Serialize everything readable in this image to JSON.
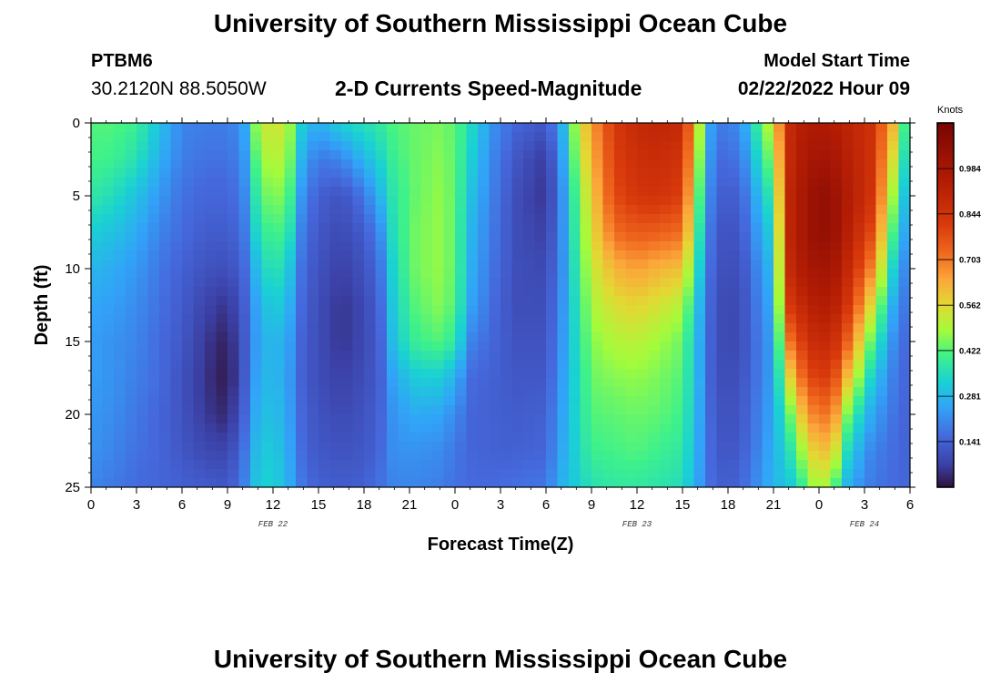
{
  "header": {
    "title": "University of Southern Mississippi Ocean Cube",
    "station_id": "PTBM6",
    "coordinates": "30.2120N  88.5050W",
    "subtitle": "2-D Currents Speed-Magnitude",
    "model_start_label": "Model Start Time",
    "model_start_value": "02/22/2022 Hour 09"
  },
  "footer": {
    "title": "University of Southern Mississippi Ocean Cube"
  },
  "colors": {
    "background": "#ffffff",
    "text": "#000000"
  },
  "chart_data": {
    "type": "heatmap",
    "title": "2-D Currents Speed-Magnitude",
    "xlabel": "Forecast Time(Z)",
    "ylabel": "Depth (ft)",
    "x_hours_range": [
      0,
      54
    ],
    "x_ticks": [
      {
        "h": 0,
        "label": "0"
      },
      {
        "h": 3,
        "label": "3"
      },
      {
        "h": 6,
        "label": "6"
      },
      {
        "h": 9,
        "label": "9"
      },
      {
        "h": 12,
        "label": "12"
      },
      {
        "h": 15,
        "label": "15"
      },
      {
        "h": 18,
        "label": "18"
      },
      {
        "h": 21,
        "label": "21"
      },
      {
        "h": 24,
        "label": "0"
      },
      {
        "h": 27,
        "label": "3"
      },
      {
        "h": 30,
        "label": "6"
      },
      {
        "h": 33,
        "label": "9"
      },
      {
        "h": 36,
        "label": "12"
      },
      {
        "h": 39,
        "label": "15"
      },
      {
        "h": 42,
        "label": "18"
      },
      {
        "h": 45,
        "label": "21"
      },
      {
        "h": 48,
        "label": "0"
      },
      {
        "h": 51,
        "label": "3"
      },
      {
        "h": 54,
        "label": "6"
      }
    ],
    "date_labels": [
      {
        "h": 12,
        "label": "FEB 22"
      },
      {
        "h": 36,
        "label": "FEB 23"
      },
      {
        "h": 51,
        "label": "FEB 24"
      }
    ],
    "ylim": [
      0,
      25
    ],
    "y_ticks": [
      0,
      5,
      10,
      15,
      20,
      25
    ],
    "y_tick_labels": [
      "0",
      "5",
      "10",
      "15",
      "20",
      "25"
    ],
    "colorbar": {
      "title": "Knots",
      "range": [
        0,
        1.125
      ],
      "tick_values": [
        0.141,
        0.281,
        0.422,
        0.562,
        0.703,
        0.844,
        0.984
      ],
      "tick_labels": [
        "0.141",
        "0.281",
        "0.422",
        "0.562",
        "0.703",
        "0.844",
        "0.984"
      ]
    },
    "columns": [
      {
        "h": 0,
        "s": [
          0.42,
          0.41,
          0.38,
          0.32,
          0.28,
          0.25,
          0.24,
          0.24,
          0.23,
          0.22,
          0.2
        ]
      },
      {
        "h": 1.5,
        "s": [
          0.42,
          0.4,
          0.35,
          0.3,
          0.26,
          0.24,
          0.22,
          0.22,
          0.21,
          0.2,
          0.18
        ]
      },
      {
        "h": 3,
        "s": [
          0.4,
          0.36,
          0.3,
          0.26,
          0.23,
          0.21,
          0.2,
          0.19,
          0.18,
          0.17,
          0.16
        ]
      },
      {
        "h": 4.5,
        "s": [
          0.3,
          0.27,
          0.23,
          0.2,
          0.18,
          0.17,
          0.16,
          0.16,
          0.15,
          0.15,
          0.15
        ]
      },
      {
        "h": 6,
        "s": [
          0.2,
          0.19,
          0.17,
          0.16,
          0.14,
          0.13,
          0.12,
          0.11,
          0.11,
          0.12,
          0.14
        ]
      },
      {
        "h": 7.5,
        "s": [
          0.19,
          0.17,
          0.15,
          0.13,
          0.11,
          0.08,
          0.06,
          0.05,
          0.06,
          0.09,
          0.13
        ]
      },
      {
        "h": 9,
        "s": [
          0.19,
          0.17,
          0.15,
          0.13,
          0.1,
          0.05,
          0.02,
          0.01,
          0.03,
          0.08,
          0.12
        ]
      },
      {
        "h": 10,
        "s": [
          0.22,
          0.2,
          0.18,
          0.16,
          0.14,
          0.12,
          0.11,
          0.11,
          0.13,
          0.16,
          0.18
        ]
      },
      {
        "h": 11,
        "s": [
          0.5,
          0.45,
          0.4,
          0.36,
          0.3,
          0.26,
          0.25,
          0.26,
          0.28,
          0.3,
          0.32
        ]
      },
      {
        "h": 12,
        "s": [
          0.55,
          0.52,
          0.47,
          0.42,
          0.38,
          0.33,
          0.29,
          0.29,
          0.3,
          0.32,
          0.33
        ]
      },
      {
        "h": 13,
        "s": [
          0.5,
          0.47,
          0.43,
          0.38,
          0.32,
          0.28,
          0.25,
          0.24,
          0.25,
          0.26,
          0.27
        ]
      },
      {
        "h": 14,
        "s": [
          0.3,
          0.25,
          0.2,
          0.17,
          0.15,
          0.14,
          0.13,
          0.13,
          0.14,
          0.15,
          0.17
        ]
      },
      {
        "h": 15,
        "s": [
          0.26,
          0.18,
          0.14,
          0.12,
          0.11,
          0.1,
          0.1,
          0.1,
          0.11,
          0.12,
          0.14
        ]
      },
      {
        "h": 16.5,
        "s": [
          0.33,
          0.2,
          0.11,
          0.09,
          0.07,
          0.05,
          0.05,
          0.07,
          0.09,
          0.11,
          0.13
        ]
      },
      {
        "h": 18,
        "s": [
          0.36,
          0.28,
          0.18,
          0.13,
          0.11,
          0.09,
          0.09,
          0.1,
          0.11,
          0.12,
          0.14
        ]
      },
      {
        "h": 19,
        "s": [
          0.38,
          0.33,
          0.27,
          0.2,
          0.16,
          0.14,
          0.13,
          0.13,
          0.14,
          0.15,
          0.17
        ]
      },
      {
        "h": 20,
        "s": [
          0.42,
          0.4,
          0.38,
          0.37,
          0.35,
          0.33,
          0.31,
          0.26,
          0.23,
          0.22,
          0.2
        ]
      },
      {
        "h": 21.5,
        "s": [
          0.44,
          0.44,
          0.44,
          0.45,
          0.45,
          0.43,
          0.4,
          0.32,
          0.26,
          0.22,
          0.2
        ]
      },
      {
        "h": 23,
        "s": [
          0.45,
          0.46,
          0.47,
          0.47,
          0.47,
          0.46,
          0.42,
          0.32,
          0.25,
          0.21,
          0.19
        ]
      },
      {
        "h": 24,
        "s": [
          0.43,
          0.43,
          0.43,
          0.43,
          0.43,
          0.42,
          0.38,
          0.27,
          0.21,
          0.18,
          0.17
        ]
      },
      {
        "h": 25,
        "s": [
          0.35,
          0.33,
          0.3,
          0.28,
          0.27,
          0.25,
          0.2,
          0.16,
          0.15,
          0.15,
          0.16
        ]
      },
      {
        "h": 26.5,
        "s": [
          0.22,
          0.2,
          0.19,
          0.18,
          0.17,
          0.16,
          0.15,
          0.14,
          0.14,
          0.14,
          0.16
        ]
      },
      {
        "h": 28,
        "s": [
          0.15,
          0.12,
          0.1,
          0.1,
          0.1,
          0.1,
          0.11,
          0.12,
          0.13,
          0.14,
          0.17
        ]
      },
      {
        "h": 30,
        "s": [
          0.12,
          0.06,
          0.05,
          0.07,
          0.09,
          0.1,
          0.11,
          0.12,
          0.14,
          0.15,
          0.18
        ]
      },
      {
        "h": 31,
        "s": [
          0.25,
          0.22,
          0.2,
          0.2,
          0.2,
          0.21,
          0.22,
          0.23,
          0.24,
          0.25,
          0.27
        ]
      },
      {
        "h": 32,
        "s": [
          0.5,
          0.46,
          0.42,
          0.4,
          0.38,
          0.36,
          0.35,
          0.34,
          0.34,
          0.33,
          0.32
        ]
      },
      {
        "h": 33,
        "s": [
          0.65,
          0.62,
          0.58,
          0.55,
          0.52,
          0.49,
          0.46,
          0.44,
          0.42,
          0.4,
          0.36
        ]
      },
      {
        "h": 34.5,
        "s": [
          0.82,
          0.8,
          0.78,
          0.72,
          0.62,
          0.55,
          0.5,
          0.46,
          0.43,
          0.41,
          0.38
        ]
      },
      {
        "h": 36,
        "s": [
          0.88,
          0.86,
          0.83,
          0.75,
          0.65,
          0.57,
          0.51,
          0.47,
          0.44,
          0.42,
          0.38
        ]
      },
      {
        "h": 37.5,
        "s": [
          0.9,
          0.87,
          0.84,
          0.74,
          0.62,
          0.54,
          0.48,
          0.45,
          0.43,
          0.4,
          0.37
        ]
      },
      {
        "h": 39,
        "s": [
          0.88,
          0.84,
          0.8,
          0.72,
          0.6,
          0.5,
          0.44,
          0.42,
          0.4,
          0.38,
          0.35
        ]
      },
      {
        "h": 40,
        "s": [
          0.55,
          0.5,
          0.45,
          0.4,
          0.35,
          0.3,
          0.28,
          0.28,
          0.27,
          0.26,
          0.25
        ]
      },
      {
        "h": 41,
        "s": [
          0.2,
          0.18,
          0.16,
          0.14,
          0.13,
          0.12,
          0.12,
          0.12,
          0.13,
          0.14,
          0.15
        ]
      },
      {
        "h": 42,
        "s": [
          0.18,
          0.15,
          0.12,
          0.1,
          0.09,
          0.08,
          0.08,
          0.09,
          0.1,
          0.11,
          0.13
        ]
      },
      {
        "h": 43,
        "s": [
          0.24,
          0.2,
          0.16,
          0.14,
          0.12,
          0.11,
          0.11,
          0.12,
          0.13,
          0.14,
          0.16
        ]
      },
      {
        "h": 44,
        "s": [
          0.4,
          0.34,
          0.28,
          0.24,
          0.21,
          0.19,
          0.18,
          0.18,
          0.19,
          0.2,
          0.22
        ]
      },
      {
        "h": 45,
        "s": [
          0.55,
          0.48,
          0.4,
          0.34,
          0.3,
          0.27,
          0.25,
          0.25,
          0.26,
          0.27,
          0.28
        ]
      },
      {
        "h": 46,
        "s": [
          0.88,
          0.88,
          0.9,
          0.9,
          0.88,
          0.82,
          0.7,
          0.55,
          0.42,
          0.35,
          0.3
        ]
      },
      {
        "h": 47,
        "s": [
          0.94,
          0.96,
          0.98,
          0.98,
          0.96,
          0.9,
          0.82,
          0.74,
          0.62,
          0.5,
          0.4
        ]
      },
      {
        "h": 48,
        "s": [
          0.96,
          1.0,
          1.05,
          1.05,
          1.0,
          0.95,
          0.9,
          0.82,
          0.72,
          0.62,
          0.52
        ]
      },
      {
        "h": 49,
        "s": [
          0.94,
          0.98,
          1.02,
          1.02,
          0.98,
          0.93,
          0.86,
          0.78,
          0.68,
          0.56,
          0.42
        ]
      },
      {
        "h": 50,
        "s": [
          0.9,
          0.92,
          0.94,
          0.92,
          0.88,
          0.82,
          0.72,
          0.58,
          0.42,
          0.32,
          0.25
        ]
      },
      {
        "h": 51.5,
        "s": [
          0.85,
          0.85,
          0.84,
          0.78,
          0.68,
          0.55,
          0.42,
          0.32,
          0.25,
          0.2,
          0.18
        ]
      },
      {
        "h": 53,
        "s": [
          0.6,
          0.52,
          0.45,
          0.38,
          0.3,
          0.24,
          0.2,
          0.18,
          0.17,
          0.16,
          0.16
        ]
      },
      {
        "h": 54,
        "s": [
          0.3,
          0.26,
          0.22,
          0.19,
          0.16,
          0.15,
          0.14,
          0.14,
          0.14,
          0.14,
          0.15
        ]
      }
    ]
  }
}
